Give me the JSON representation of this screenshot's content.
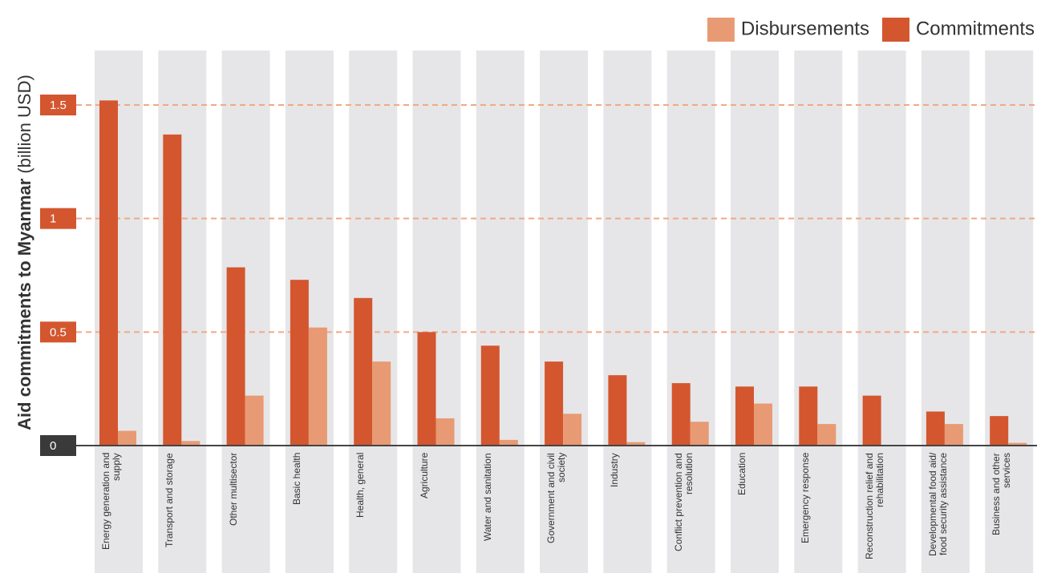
{
  "chart_data": {
    "type": "bar",
    "ylabel": "Aid commitments to Myanmar",
    "ylabel_unit": "(billion USD)",
    "categories": [
      "Energy generation and supply",
      "Transport and storage",
      "Other multisector",
      "Basic health",
      "Health, general",
      "Agriculture",
      "Water and sanitation",
      "Government and civil society",
      "Industry",
      "Conflict prevention and resolution",
      "Education",
      "Emergency response",
      "Reconstruction relief and rehabilitation",
      "Developmental food aid/ food security  assistance",
      "Business and other services"
    ],
    "series": [
      {
        "name": "Commitments",
        "color": "#d4562f",
        "values": [
          1.52,
          1.37,
          0.785,
          0.73,
          0.65,
          0.5,
          0.44,
          0.37,
          0.31,
          0.275,
          0.26,
          0.26,
          0.22,
          0.15,
          0.13
        ]
      },
      {
        "name": "Disbursements",
        "color": "#e89a74",
        "values": [
          0.065,
          0.02,
          0.22,
          0.52,
          0.37,
          0.12,
          0.025,
          0.14,
          0.015,
          0.105,
          0.185,
          0.095,
          0,
          0.095,
          0.012
        ]
      }
    ],
    "ylim": [
      0,
      1.5
    ],
    "yticks": [
      0,
      0.5,
      1,
      1.5
    ],
    "grid": true,
    "legend": "top-right"
  }
}
